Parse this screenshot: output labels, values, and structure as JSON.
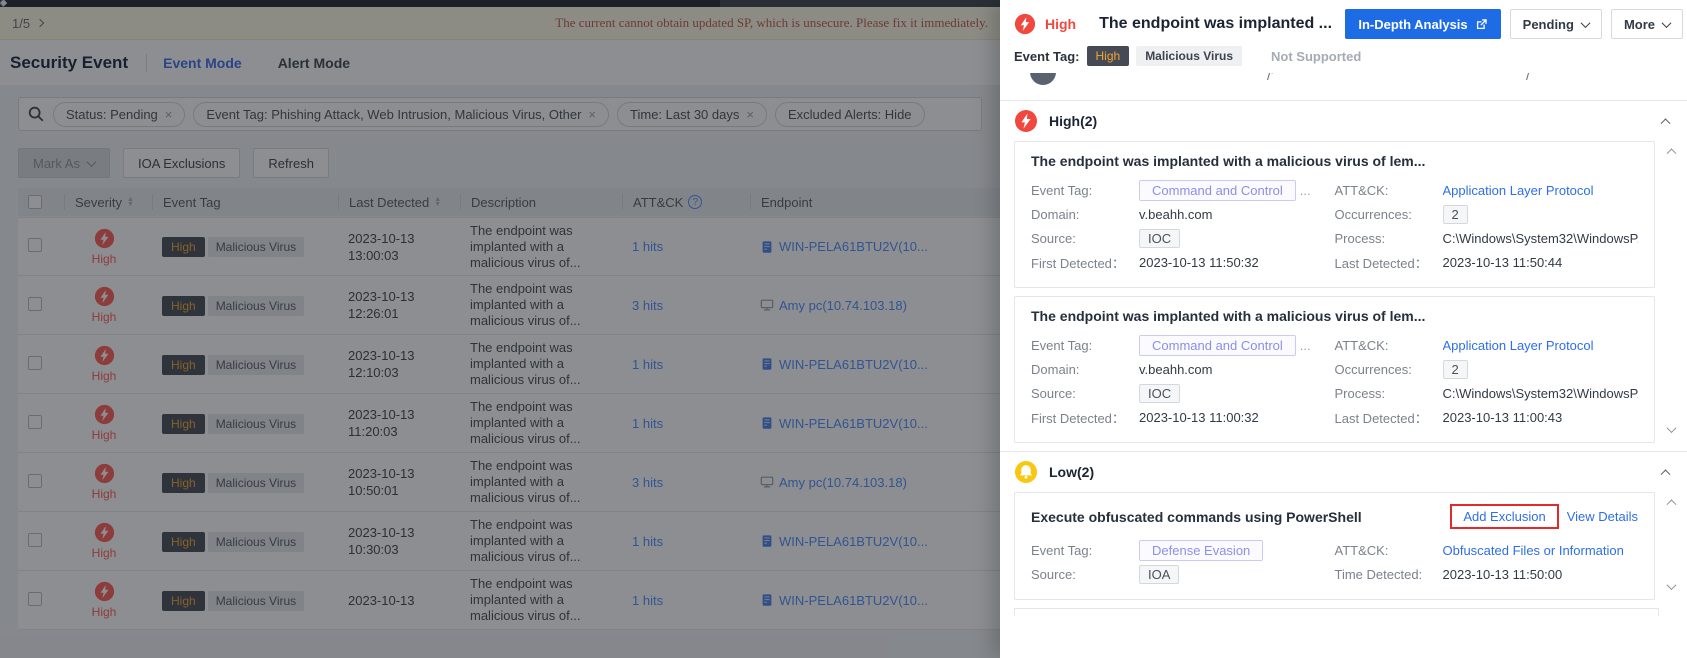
{
  "banner": {
    "pagination": "1/5",
    "warning": "The current cannot obtain updated SP, which is unsecure. Please fix it immediately."
  },
  "nav": {
    "title": "Security Event",
    "tabs": [
      {
        "label": "Event Mode",
        "active": true
      },
      {
        "label": "Alert Mode",
        "active": false
      }
    ]
  },
  "filters": {
    "chips": [
      {
        "label": "Status: Pending",
        "closable": true
      },
      {
        "label": "Event Tag: Phishing Attack, Web Intrusion, Malicious Virus, Other",
        "closable": true
      },
      {
        "label": "Time: Last 30 days",
        "closable": true
      },
      {
        "label": "Excluded Alerts: Hide",
        "closable": false
      }
    ]
  },
  "toolbar": {
    "mark_as": "Mark As",
    "ioa_exclusions": "IOA Exclusions",
    "refresh": "Refresh"
  },
  "table": {
    "columns": {
      "severity": "Severity",
      "event_tag": "Event Tag",
      "last_detected": "Last Detected",
      "description": "Description",
      "attck": "ATT&CK",
      "endpoint": "Endpoint"
    },
    "rows": [
      {
        "severity": "High",
        "tag_level": "High",
        "tag_type": "Malicious Virus",
        "date": "2023-10-13",
        "time": "13:00:03",
        "description": "The endpoint was implanted with a malicious virus of...",
        "attck": "1 hits",
        "endpoint": "WIN-PELA61BTU2V(10...",
        "endpoint_icon": "server"
      },
      {
        "severity": "High",
        "tag_level": "High",
        "tag_type": "Malicious Virus",
        "date": "2023-10-13",
        "time": "12:26:01",
        "description": "The endpoint was implanted with a malicious virus of...",
        "attck": "3 hits",
        "endpoint": "Amy pc(10.74.103.18)",
        "endpoint_icon": "monitor"
      },
      {
        "severity": "High",
        "tag_level": "High",
        "tag_type": "Malicious Virus",
        "date": "2023-10-13",
        "time": "12:10:03",
        "description": "The endpoint was implanted with a malicious virus of...",
        "attck": "1 hits",
        "endpoint": "WIN-PELA61BTU2V(10...",
        "endpoint_icon": "server"
      },
      {
        "severity": "High",
        "tag_level": "High",
        "tag_type": "Malicious Virus",
        "date": "2023-10-13",
        "time": "11:20:03",
        "description": "The endpoint was implanted with a malicious virus of...",
        "attck": "1 hits",
        "endpoint": "WIN-PELA61BTU2V(10...",
        "endpoint_icon": "server"
      },
      {
        "severity": "High",
        "tag_level": "High",
        "tag_type": "Malicious Virus",
        "date": "2023-10-13",
        "time": "10:50:01",
        "description": "The endpoint was implanted with a malicious virus of...",
        "attck": "3 hits",
        "endpoint": "Amy pc(10.74.103.18)",
        "endpoint_icon": "monitor"
      },
      {
        "severity": "High",
        "tag_level": "High",
        "tag_type": "Malicious Virus",
        "date": "2023-10-13",
        "time": "10:30:03",
        "description": "The endpoint was implanted with a malicious virus of...",
        "attck": "1 hits",
        "endpoint": "WIN-PELA61BTU2V(10...",
        "endpoint_icon": "server"
      },
      {
        "severity": "High",
        "tag_level": "High",
        "tag_type": "Malicious Virus",
        "date": "2023-10-13",
        "time": "",
        "description": "The endpoint was implanted with a malicious virus of...",
        "attck": "1 hits",
        "endpoint": "WIN-PELA61BTU2V(10...",
        "endpoint_icon": "server"
      }
    ]
  },
  "panel": {
    "header": {
      "severity": "High",
      "title": "The endpoint was implanted ...",
      "analysis_button": "In-Depth Analysis",
      "status_button": "Pending",
      "more_button": "More"
    },
    "tag_row": {
      "label": "Event Tag:",
      "severity_tag": "High",
      "type_tag": "Malicious Virus",
      "extra": "Not Supported"
    },
    "sections": [
      {
        "title": "High(2)",
        "level": "high",
        "cards": [
          {
            "title": "The endpoint was implanted with a malicious virus of lem...",
            "links": [],
            "fields_left": [
              {
                "label": "Event Tag:",
                "value": "Command and Control",
                "style": "badge-purple",
                "suffix": "..."
              },
              {
                "label": "Domain:",
                "value": "v.beahh.com",
                "style": "text"
              },
              {
                "label": "Source:",
                "value": "IOC",
                "style": "badge-gray"
              },
              {
                "label": "First Detected：",
                "value": "2023-10-13 11:50:32",
                "style": "text"
              }
            ],
            "fields_right": [
              {
                "label": "ATT&CK:",
                "value": "Application Layer Protocol",
                "style": "link"
              },
              {
                "label": "Occurrences:",
                "value": "2",
                "style": "badge-gray"
              },
              {
                "label": "Process:",
                "value": "C:\\Windows\\System32\\WindowsP...",
                "style": "text"
              },
              {
                "label": "Last Detected：",
                "value": "2023-10-13 11:50:44",
                "style": "text"
              }
            ]
          },
          {
            "title": "The endpoint was implanted with a malicious virus of lem...",
            "links": [],
            "fields_left": [
              {
                "label": "Event Tag:",
                "value": "Command and Control",
                "style": "badge-purple",
                "suffix": "..."
              },
              {
                "label": "Domain:",
                "value": "v.beahh.com",
                "style": "text"
              },
              {
                "label": "Source:",
                "value": "IOC",
                "style": "badge-gray"
              },
              {
                "label": "First Detected：",
                "value": "2023-10-13 11:00:32",
                "style": "text"
              }
            ],
            "fields_right": [
              {
                "label": "ATT&CK:",
                "value": "Application Layer Protocol",
                "style": "link"
              },
              {
                "label": "Occurrences:",
                "value": "2",
                "style": "badge-gray"
              },
              {
                "label": "Process:",
                "value": "C:\\Windows\\System32\\WindowsP...",
                "style": "text"
              },
              {
                "label": "Last Detected：",
                "value": "2023-10-13 11:00:43",
                "style": "text"
              }
            ]
          }
        ]
      },
      {
        "title": "Low(2)",
        "level": "low",
        "cards": [
          {
            "title": "Execute obfuscated commands using PowerShell",
            "links": [
              {
                "label": "Add Exclusion",
                "boxed": true
              },
              {
                "label": "View Details",
                "boxed": false
              }
            ],
            "fields_left": [
              {
                "label": "Event Tag:",
                "value": "Defense Evasion",
                "style": "badge-purple"
              },
              {
                "label": "Source:",
                "value": "IOA",
                "style": "badge-gray"
              }
            ],
            "fields_right": [
              {
                "label": "ATT&CK:",
                "value": "Obfuscated Files or Information",
                "style": "link"
              },
              {
                "label": "Time Detected:",
                "value": "2023-10-13 11:50:00",
                "style": "text"
              }
            ]
          }
        ]
      }
    ]
  },
  "colors": {
    "accent_blue": "#1e6be6",
    "severity_high_red": "#f0483e",
    "severity_low_yellow": "#f9c712",
    "tag_orange": "#f0a62f",
    "annotation_red": "#e12b2b"
  }
}
